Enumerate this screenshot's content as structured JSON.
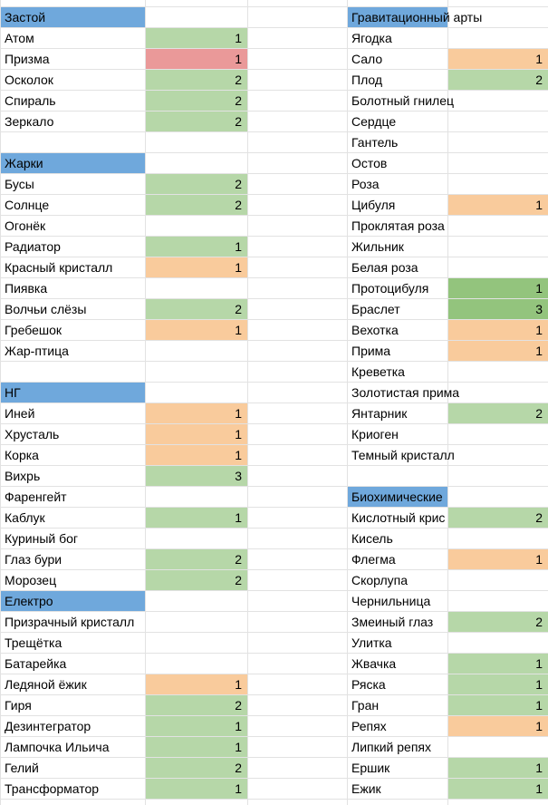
{
  "colors": {
    "header": "#6fa8dc",
    "green": "#b6d7a8",
    "green_dark": "#93c47d",
    "orange": "#f9cb9c",
    "red": "#ea9999"
  },
  "left_column": [
    {
      "type": "header",
      "text": "Застой"
    },
    {
      "type": "item",
      "name": "Атом",
      "count": 1,
      "color": "green"
    },
    {
      "type": "item",
      "name": "Призма",
      "count": 1,
      "color": "red"
    },
    {
      "type": "item",
      "name": "Осколок",
      "count": 2,
      "color": "green"
    },
    {
      "type": "item",
      "name": "Спираль",
      "count": 2,
      "color": "green"
    },
    {
      "type": "item",
      "name": "Зеркало",
      "count": 2,
      "color": "green"
    },
    {
      "type": "blank"
    },
    {
      "type": "header",
      "text": "Жарки"
    },
    {
      "type": "item",
      "name": "Бусы",
      "count": 2,
      "color": "green"
    },
    {
      "type": "item",
      "name": "Солнце",
      "count": 2,
      "color": "green"
    },
    {
      "type": "item",
      "name": "Огонёк"
    },
    {
      "type": "item",
      "name": "Радиатор",
      "count": 1,
      "color": "green"
    },
    {
      "type": "item",
      "name": "Красный кристалл",
      "count": 1,
      "color": "orange"
    },
    {
      "type": "item",
      "name": "Пиявка"
    },
    {
      "type": "item",
      "name": "Волчьи слёзы",
      "count": 2,
      "color": "green"
    },
    {
      "type": "item",
      "name": "Гребешок",
      "count": 1,
      "color": "orange"
    },
    {
      "type": "item",
      "name": "Жар-птица"
    },
    {
      "type": "blank"
    },
    {
      "type": "header",
      "text": "НГ"
    },
    {
      "type": "item",
      "name": "Иней",
      "count": 1,
      "color": "orange"
    },
    {
      "type": "item",
      "name": "Хрусталь",
      "count": 1,
      "color": "orange"
    },
    {
      "type": "item",
      "name": "Корка",
      "count": 1,
      "color": "orange"
    },
    {
      "type": "item",
      "name": "Вихрь",
      "count": 3,
      "color": "green"
    },
    {
      "type": "item",
      "name": "Фаренгейт"
    },
    {
      "type": "item",
      "name": "Каблук",
      "count": 1,
      "color": "green"
    },
    {
      "type": "item",
      "name": "Куриный бог"
    },
    {
      "type": "item",
      "name": "Глаз бури",
      "count": 2,
      "color": "green"
    },
    {
      "type": "item",
      "name": "Морозец",
      "count": 2,
      "color": "green"
    },
    {
      "type": "header",
      "text": "Електро"
    },
    {
      "type": "item",
      "name": "Призрачный кристалл"
    },
    {
      "type": "item",
      "name": "Трещётка"
    },
    {
      "type": "item",
      "name": "Батарейка"
    },
    {
      "type": "item",
      "name": "Ледяной ёжик",
      "count": 1,
      "color": "orange"
    },
    {
      "type": "item",
      "name": "Гиря",
      "count": 2,
      "color": "green"
    },
    {
      "type": "item",
      "name": "Дезинтегратор",
      "count": 1,
      "color": "green"
    },
    {
      "type": "item",
      "name": "Лампочка Ильича",
      "count": 1,
      "color": "green"
    },
    {
      "type": "item",
      "name": "Гелий",
      "count": 2,
      "color": "green"
    },
    {
      "type": "item",
      "name": "Трансформатор",
      "count": 1,
      "color": "green"
    }
  ],
  "right_column": [
    {
      "type": "header",
      "text": "Гравитационный арты"
    },
    {
      "type": "item",
      "name": "Ягодка"
    },
    {
      "type": "item",
      "name": "Сало",
      "count": 1,
      "color": "orange"
    },
    {
      "type": "item",
      "name": "Плод",
      "count": 2,
      "color": "green"
    },
    {
      "type": "item",
      "name": "Болотный гнилец"
    },
    {
      "type": "item",
      "name": "Сердце"
    },
    {
      "type": "item",
      "name": "Гантель"
    },
    {
      "type": "item",
      "name": "Остов"
    },
    {
      "type": "item",
      "name": "Роза"
    },
    {
      "type": "item",
      "name": "Цибуля",
      "count": 1,
      "color": "orange"
    },
    {
      "type": "item",
      "name": "Проклятая роза"
    },
    {
      "type": "item",
      "name": "Жильник"
    },
    {
      "type": "item",
      "name": "Белая роза"
    },
    {
      "type": "item",
      "name": "Протоцибуля",
      "count": 1,
      "color": "green_dark"
    },
    {
      "type": "item",
      "name": "Браслет",
      "count": 3,
      "color": "green_dark"
    },
    {
      "type": "item",
      "name": "Вехотка",
      "count": 1,
      "color": "orange"
    },
    {
      "type": "item",
      "name": "Прима",
      "count": 1,
      "color": "orange"
    },
    {
      "type": "item",
      "name": "Креветка"
    },
    {
      "type": "item",
      "name": "Золотистая прима"
    },
    {
      "type": "item",
      "name": "Янтарник",
      "count": 2,
      "color": "green"
    },
    {
      "type": "item",
      "name": "Криоген"
    },
    {
      "type": "item",
      "name": "Темный кристалл"
    },
    {
      "type": "blank"
    },
    {
      "type": "header",
      "text": "Биохимические"
    },
    {
      "type": "item",
      "name": "Кислотный крис",
      "count": 2,
      "color": "green"
    },
    {
      "type": "item",
      "name": "Кисель"
    },
    {
      "type": "item",
      "name": "Флегма",
      "count": 1,
      "color": "orange"
    },
    {
      "type": "item",
      "name": "Скорлупа"
    },
    {
      "type": "item",
      "name": "Чернильница"
    },
    {
      "type": "item",
      "name": "Змеиный глаз",
      "count": 2,
      "color": "green"
    },
    {
      "type": "item",
      "name": "Улитка"
    },
    {
      "type": "item",
      "name": "Жвачка",
      "count": 1,
      "color": "green"
    },
    {
      "type": "item",
      "name": "Ряска",
      "count": 1,
      "color": "green"
    },
    {
      "type": "item",
      "name": "Гран",
      "count": 1,
      "color": "green"
    },
    {
      "type": "item",
      "name": "Репях",
      "count": 1,
      "color": "orange"
    },
    {
      "type": "item",
      "name": "Липкий репях"
    },
    {
      "type": "item",
      "name": "Ершик",
      "count": 1,
      "color": "green"
    },
    {
      "type": "item",
      "name": "Ежик",
      "count": 1,
      "color": "green"
    }
  ]
}
